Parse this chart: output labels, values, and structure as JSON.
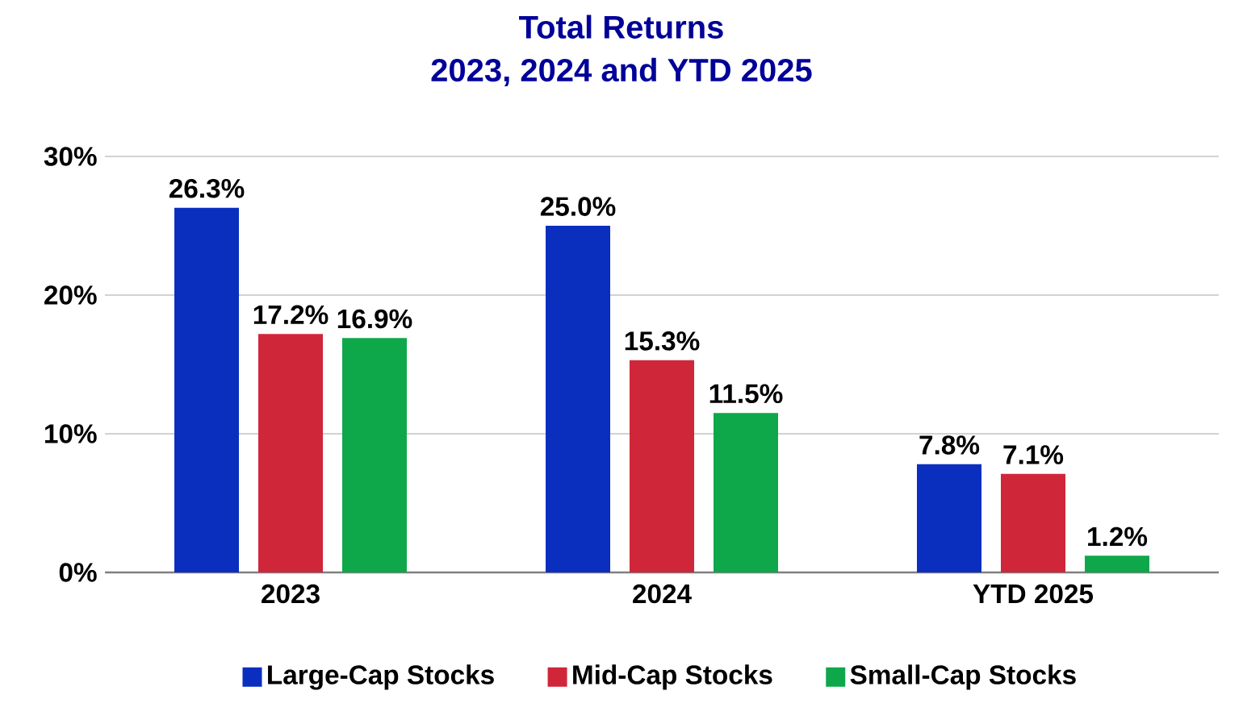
{
  "chart_data": {
    "type": "bar",
    "title": "Total Returns\n2023, 2024 and YTD 2025",
    "categories": [
      "2023",
      "2024",
      "YTD 2025"
    ],
    "series": [
      {
        "name": "Large-Cap Stocks",
        "color": "#0a2fbf",
        "values": [
          26.3,
          25.0,
          7.8
        ],
        "value_labels": [
          "26.3%",
          "25.0%",
          "7.8%"
        ]
      },
      {
        "name": "Mid-Cap Stocks",
        "color": "#d0263a",
        "values": [
          17.2,
          15.3,
          7.1
        ],
        "value_labels": [
          "17.2%",
          "15.3%",
          "7.1%"
        ]
      },
      {
        "name": "Small-Cap Stocks",
        "color": "#0ea84a",
        "values": [
          16.9,
          11.5,
          1.2
        ],
        "value_labels": [
          "16.9%",
          "11.5%",
          "1.2%"
        ]
      }
    ],
    "ylim": [
      0,
      30
    ],
    "yticks": [
      {
        "value": 0,
        "label": "0%"
      },
      {
        "value": 10,
        "label": "10%"
      },
      {
        "value": 20,
        "label": "20%"
      },
      {
        "value": 30,
        "label": "30%"
      }
    ],
    "grid": "y",
    "legend": "bottom"
  }
}
